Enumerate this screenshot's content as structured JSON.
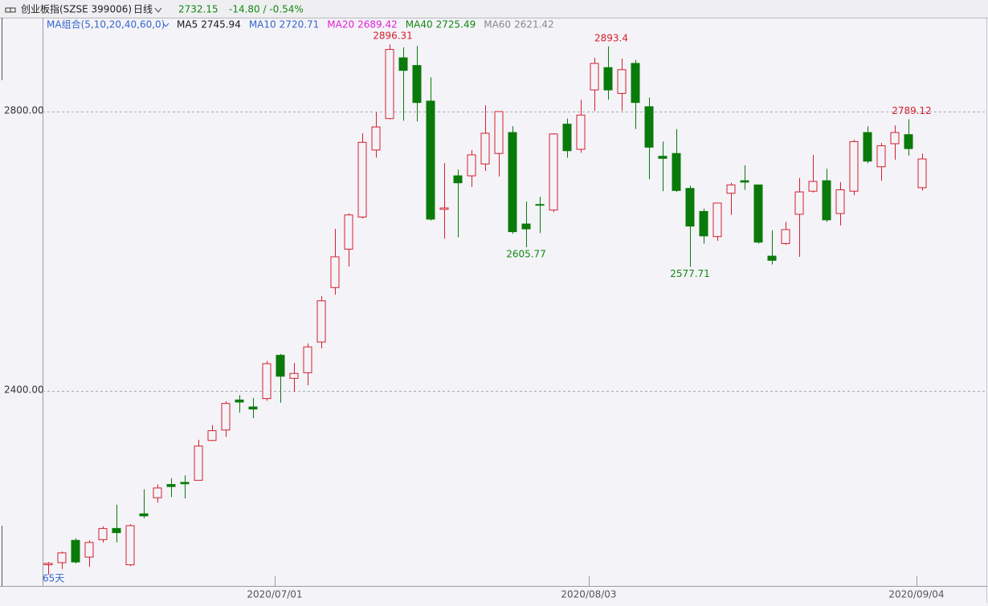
{
  "chart_data": {
    "type": "candlestick",
    "title": "创业板指(SZSE 399006)",
    "period": "日线",
    "last": "2732.15",
    "change": "-14.80 / -0.54%",
    "ma_label": "MA组合(5,10,20,40,60,0)",
    "moving_averages": [
      {
        "name": "MA5",
        "value": 2745.94,
        "color": "#1a1a1a"
      },
      {
        "name": "MA10",
        "value": 2720.71,
        "color": "#3366cc"
      },
      {
        "name": "MA20",
        "value": 2689.42,
        "color": "#e020d8"
      },
      {
        "name": "MA40",
        "value": 2725.49,
        "color": "#118811"
      },
      {
        "name": "MA60",
        "value": 2621.42,
        "color": "#8a8a8a"
      }
    ],
    "count_label": "65天",
    "categories": [
      null,
      null,
      null,
      null,
      null,
      null,
      null,
      null,
      null,
      null,
      null,
      null,
      null,
      null,
      null,
      null,
      null,
      "2020/07/01",
      null,
      null,
      null,
      null,
      null,
      null,
      null,
      null,
      null,
      null,
      null,
      null,
      null,
      null,
      null,
      null,
      null,
      null,
      null,
      null,
      null,
      null,
      "2020/08/03",
      null,
      null,
      null,
      null,
      null,
      null,
      null,
      null,
      null,
      null,
      null,
      null,
      null,
      null,
      null,
      null,
      null,
      null,
      null,
      null,
      null,
      null,
      null,
      "2020/09/04"
    ],
    "open": [
      2151,
      2154,
      2186,
      2162,
      2187,
      2203,
      2151,
      2224,
      2247,
      2266,
      2269,
      2272,
      2329,
      2344,
      2387,
      2377,
      2389,
      2451,
      2418,
      2426,
      2470,
      2548,
      2603,
      2649,
      2745,
      2790,
      2877,
      2866,
      2815,
      2660,
      2708,
      2708,
      2725,
      2740,
      2770,
      2639,
      2667,
      2659,
      2782,
      2746,
      2831,
      2863,
      2826,
      2869,
      2807,
      2736,
      2740,
      2690,
      2657,
      2621,
      2683,
      2701,
      2695,
      2593,
      2611,
      2653,
      2686,
      2701,
      2654,
      2686,
      2770,
      2721,
      2754,
      2767,
      2691
    ],
    "high": [
      2155,
      2170,
      2189,
      2186,
      2206,
      2237,
      2209,
      2259,
      2266,
      2275,
      2279,
      2330,
      2351,
      2385,
      2394,
      2390,
      2443,
      2453,
      2440,
      2468,
      2536,
      2632,
      2654,
      2769,
      2799,
      2896.31,
      2892,
      2894,
      2849,
      2726,
      2717,
      2745,
      2809,
      2800,
      2779,
      2671,
      2678,
      2769,
      2790,
      2817,
      2877,
      2893.4,
      2876,
      2874,
      2820,
      2757,
      2775,
      2694,
      2661,
      2669,
      2698,
      2723,
      2695,
      2630,
      2642,
      2705,
      2738,
      2718,
      2699,
      2760,
      2779,
      2755,
      2780,
      2789.12,
      2740
    ],
    "low": [
      2137,
      2145,
      2153,
      2148,
      2183,
      2183,
      2149,
      2218,
      2240,
      2248,
      2246,
      2272,
      2328,
      2334,
      2369,
      2361,
      2386,
      2383,
      2399,
      2408,
      2461,
      2538,
      2578,
      2647,
      2734,
      2789,
      2787,
      2786,
      2644,
      2618,
      2620,
      2692,
      2715,
      2707,
      2625,
      2605.77,
      2626,
      2656,
      2734,
      2741,
      2801,
      2817,
      2801,
      2775,
      2703,
      2686,
      2685,
      2577.71,
      2611,
      2615,
      2652,
      2688,
      2611,
      2581,
      2609,
      2592,
      2684,
      2642,
      2637,
      2680,
      2726,
      2701,
      2731,
      2737,
      2687
    ],
    "close": [
      2153,
      2168,
      2155,
      2183,
      2203,
      2197,
      2207,
      2221,
      2261,
      2263,
      2267,
      2321,
      2343,
      2382,
      2384,
      2374,
      2439,
      2421,
      2425,
      2463,
      2529,
      2592,
      2652,
      2756,
      2778,
      2889,
      2859,
      2813,
      2646,
      2662,
      2698,
      2738,
      2769,
      2800,
      2628,
      2632,
      2666,
      2768,
      2744,
      2795,
      2869,
      2831,
      2860,
      2813,
      2749,
      2733,
      2687,
      2636,
      2622,
      2669,
      2695,
      2699,
      2613,
      2587,
      2631,
      2685,
      2700,
      2645,
      2688,
      2757,
      2729,
      2751,
      2770,
      2746.95,
      2732.15
    ],
    "up_color": "#d4202c",
    "down_color": "#0a7a0a",
    "ylim": [
      2120.7,
      2934.5
    ],
    "yticks": [
      {
        "value": 2400,
        "label": "2400.00"
      },
      {
        "value": 2800,
        "label": "2800.00"
      }
    ],
    "grid": true
  }
}
